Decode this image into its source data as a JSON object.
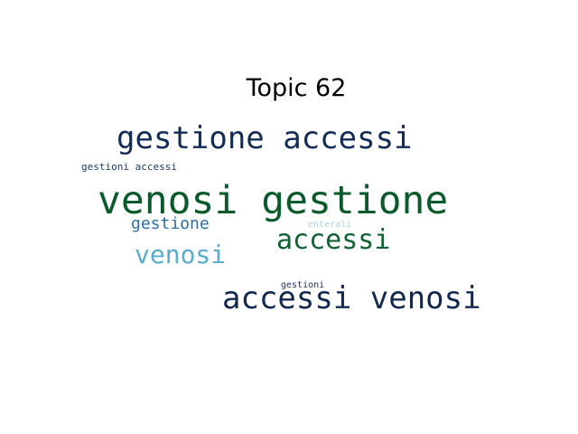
{
  "title": "Topic 62",
  "words": [
    {
      "text": "venosi gestione",
      "color": "#0b5a2b"
    },
    {
      "text": "gestione accessi",
      "color": "#132b55"
    },
    {
      "text": "accessi venosi",
      "color": "#12284f"
    },
    {
      "text": "accessi",
      "color": "#0f6232"
    },
    {
      "text": "venosi",
      "color": "#5aaccc"
    },
    {
      "text": "gestione",
      "color": "#2c6ea6"
    },
    {
      "text": "gestioni accessi",
      "color": "#1d3a62"
    },
    {
      "text": "enterali",
      "color": "#a9cfe3"
    },
    {
      "text": "gestioni",
      "color": "#1c2f57"
    }
  ]
}
